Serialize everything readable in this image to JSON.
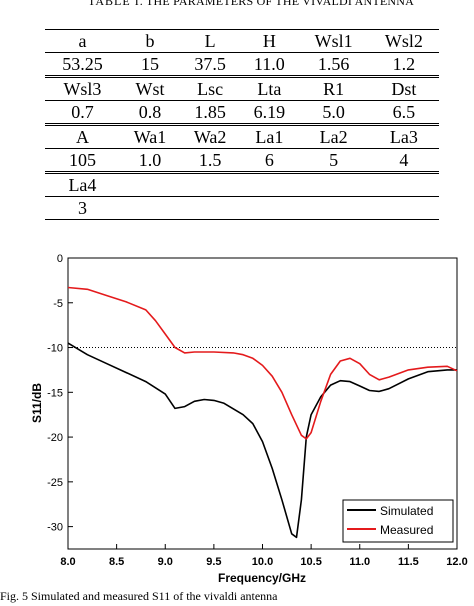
{
  "caption": {
    "label": "TABLE I.",
    "title": "THE PARAMETERS OF THE VIVALDI ANTENNA"
  },
  "table": {
    "groups": [
      {
        "headers": [
          "a",
          "b",
          "L",
          "H",
          "Wsl1",
          "Wsl2"
        ],
        "values": [
          "53.25",
          "15",
          "37.5",
          "11.0",
          "1.56",
          "1.2"
        ]
      },
      {
        "headers": [
          "Wsl3",
          "Wst",
          "Lsc",
          "Lta",
          "R1",
          "Dst"
        ],
        "values": [
          "0.7",
          "0.8",
          "1.85",
          "6.19",
          "5.0",
          "6.5"
        ]
      },
      {
        "headers": [
          "A",
          "Wa1",
          "Wa2",
          "La1",
          "La2",
          "La3"
        ],
        "values": [
          "105",
          "1.0",
          "1.5",
          "6",
          "5",
          "4"
        ]
      },
      {
        "headers": [
          "La4",
          "",
          "",
          "",
          "",
          ""
        ],
        "values": [
          "3",
          "",
          "",
          "",
          "",
          ""
        ]
      }
    ]
  },
  "chart_data": {
    "type": "line",
    "xlabel": "Frequency/GHz",
    "ylabel": "S11/dB",
    "xlim": [
      8.0,
      12.0
    ],
    "ylim": [
      -32.5,
      0
    ],
    "xticks": [
      "8.0",
      "8.5",
      "9.0",
      "9.5",
      "10.0",
      "10.5",
      "11.0",
      "11.5",
      "12.0"
    ],
    "yticks": [
      "0",
      "-5",
      "-10",
      "-15",
      "-20",
      "-25",
      "-30"
    ],
    "reference_line": -10,
    "legend_position": "bottom-right",
    "series": [
      {
        "name": "Simulated",
        "color": "#000000",
        "x": [
          8.0,
          8.2,
          8.4,
          8.6,
          8.8,
          9.0,
          9.1,
          9.2,
          9.3,
          9.4,
          9.5,
          9.6,
          9.8,
          9.9,
          10.0,
          10.1,
          10.2,
          10.3,
          10.35,
          10.4,
          10.45,
          10.5,
          10.6,
          10.7,
          10.8,
          10.9,
          11.0,
          11.1,
          11.2,
          11.3,
          11.5,
          11.7,
          11.9,
          12.0
        ],
        "y": [
          -9.5,
          -10.8,
          -11.8,
          -12.8,
          -13.8,
          -15.2,
          -16.8,
          -16.6,
          -16.0,
          -15.8,
          -15.9,
          -16.2,
          -17.5,
          -18.5,
          -20.5,
          -23.5,
          -27.0,
          -30.8,
          -31.2,
          -27.0,
          -20.0,
          -17.5,
          -15.5,
          -14.2,
          -13.7,
          -13.8,
          -14.3,
          -14.8,
          -14.9,
          -14.6,
          -13.5,
          -12.7,
          -12.5,
          -12.5
        ]
      },
      {
        "name": "Measured",
        "color": "#e41a1c",
        "x": [
          8.0,
          8.2,
          8.4,
          8.6,
          8.8,
          8.9,
          9.0,
          9.1,
          9.2,
          9.3,
          9.5,
          9.7,
          9.8,
          9.9,
          10.0,
          10.1,
          10.2,
          10.3,
          10.4,
          10.45,
          10.5,
          10.6,
          10.7,
          10.8,
          10.9,
          11.0,
          11.1,
          11.2,
          11.3,
          11.5,
          11.7,
          11.9,
          12.0
        ],
        "y": [
          -3.3,
          -3.5,
          -4.2,
          -4.9,
          -5.8,
          -7.0,
          -8.5,
          -10.0,
          -10.6,
          -10.5,
          -10.5,
          -10.6,
          -10.8,
          -11.2,
          -12.0,
          -13.2,
          -15.0,
          -17.5,
          -19.8,
          -20.2,
          -19.5,
          -16.0,
          -13.0,
          -11.5,
          -11.2,
          -11.8,
          -13.0,
          -13.6,
          -13.3,
          -12.5,
          -12.2,
          -12.1,
          -12.6
        ]
      }
    ]
  },
  "figure_caption": "Fig. 5 Simulated and measured  S11 of the vivaldi antenna"
}
